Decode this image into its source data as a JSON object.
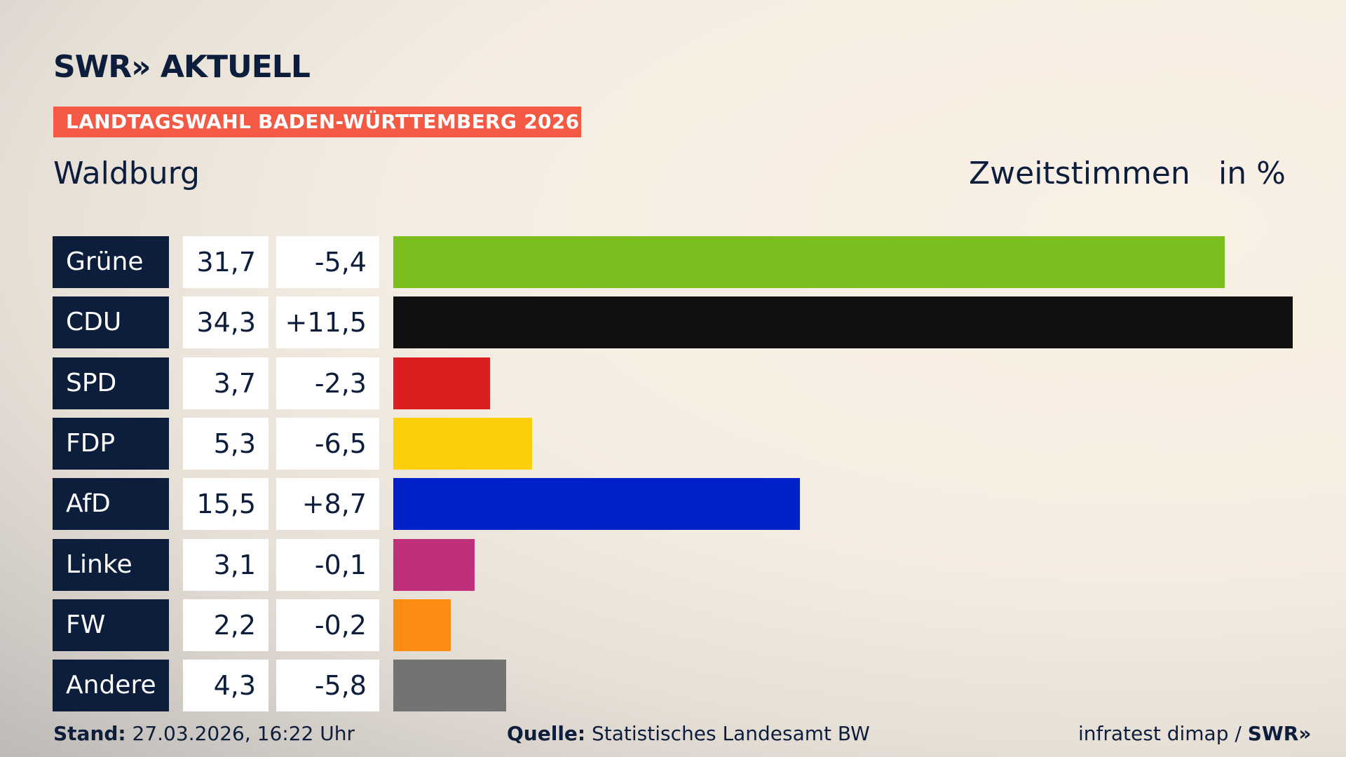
{
  "header": {
    "logo": "SWR» AKTUELL",
    "banner": "LANDTAGSWAHL BADEN-WÜRTTEMBERG 2026",
    "place": "Waldburg",
    "measure": "Zweitstimmen",
    "unit": "in %"
  },
  "chart_data": {
    "type": "bar",
    "orientation": "horizontal",
    "xlim": [
      0,
      34.3
    ],
    "categories": [
      "Grüne",
      "CDU",
      "SPD",
      "FDP",
      "AfD",
      "Linke",
      "FW",
      "Andere"
    ],
    "values": [
      31.7,
      34.3,
      3.7,
      5.3,
      15.5,
      3.1,
      2.2,
      4.3
    ],
    "value_labels": [
      "31,7",
      "34,3",
      "3,7",
      "5,3",
      "15,5",
      "3,1",
      "2,2",
      "4,3"
    ],
    "change_labels": [
      "-5,4",
      "+11,5",
      "-2,3",
      "-6,5",
      "+8,7",
      "-0,1",
      "-0,2",
      "-5,8"
    ],
    "changes": [
      -5.4,
      11.5,
      -2.3,
      -6.5,
      8.7,
      -0.1,
      -0.2,
      -5.8
    ],
    "colors": [
      "#7abf1e",
      "#111111",
      "#d91f1f",
      "#fccf0a",
      "#0020c8",
      "#c0307a",
      "#fb8c16",
      "#737373"
    ]
  },
  "footer": {
    "stand_label": "Stand:",
    "stand": "27.03.2026, 16:22 Uhr",
    "source_label": "Quelle:",
    "source": "Statistisches Landesamt BW",
    "credit": "infratest dimap /",
    "credit_logo": "SWR»"
  }
}
